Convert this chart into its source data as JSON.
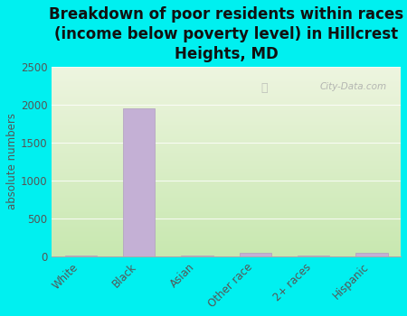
{
  "title": "Breakdown of poor residents within races\n(income below poverty level) in Hillcrest\nHeights, MD",
  "categories": [
    "White",
    "Black",
    "Asian",
    "Other race",
    "2+ races",
    "Hispanic"
  ],
  "values": [
    20,
    1950,
    10,
    55,
    20,
    50
  ],
  "bar_color": "#c4b0d5",
  "bar_edge_color": "#b09ec0",
  "background_color": "#00f0f0",
  "plot_bg_top_left": "#eef5e0",
  "plot_bg_bottom_right": "#c8e8b0",
  "ylabel": "absolute numbers",
  "ylim": [
    0,
    2500
  ],
  "yticks": [
    0,
    500,
    1000,
    1500,
    2000,
    2500
  ],
  "title_fontsize": 12,
  "tick_label_color": "#555555",
  "watermark": "City-Data.com",
  "title_color": "#111111",
  "title_fontweight": "bold"
}
